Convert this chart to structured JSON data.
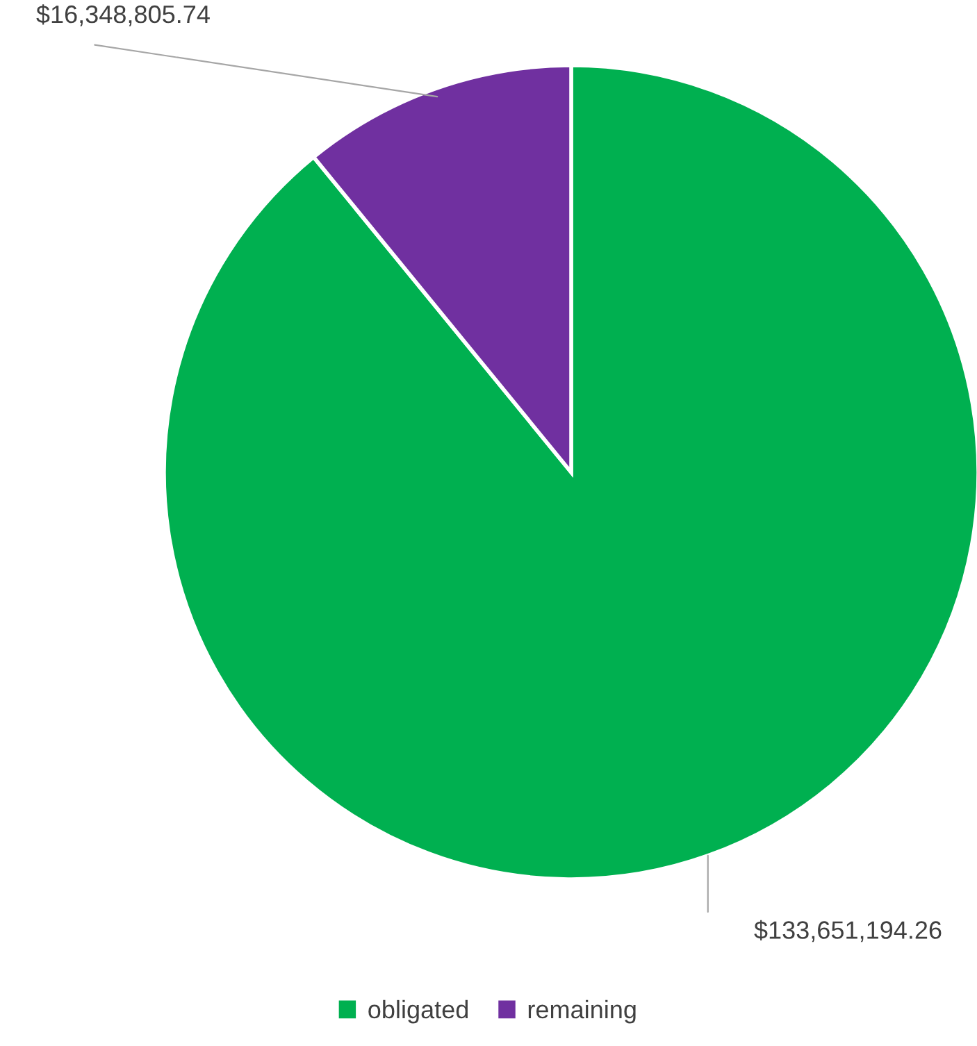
{
  "chart_data": {
    "type": "pie",
    "categories": [
      "obligated",
      "remaining"
    ],
    "values": [
      133651194.26,
      16348805.74
    ],
    "colors": [
      "#00b050",
      "#7030a0"
    ],
    "value_labels": [
      "$133,651,194.26",
      "$16,348,805.74"
    ],
    "legend": "bottom"
  }
}
